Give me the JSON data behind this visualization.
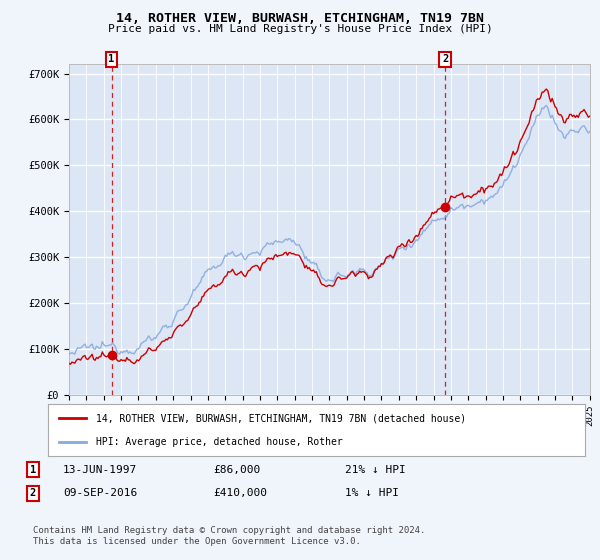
{
  "title_line1": "14, ROTHER VIEW, BURWASH, ETCHINGHAM, TN19 7BN",
  "title_line2": "Price paid vs. HM Land Registry's House Price Index (HPI)",
  "ylim": [
    0,
    720000
  ],
  "yticks": [
    0,
    100000,
    200000,
    300000,
    400000,
    500000,
    600000,
    700000
  ],
  "ytick_labels": [
    "£0",
    "£100K",
    "£200K",
    "£300K",
    "£400K",
    "£500K",
    "£600K",
    "£700K"
  ],
  "xlim": [
    1995,
    2025
  ],
  "background_color": "#f0f4fb",
  "plot_bg_color": "#dce6f5",
  "grid_color": "#ffffff",
  "hpi_color": "#88aadd",
  "price_color": "#cc0000",
  "sale1_t": 1997.45,
  "sale1_price": 86000,
  "sale1_date": "13-JUN-1997",
  "sale1_label": "21% ↓ HPI",
  "sale2_t": 2016.67,
  "sale2_price": 410000,
  "sale2_date": "09-SEP-2016",
  "sale2_label": "1% ↓ HPI",
  "legend_line1": "14, ROTHER VIEW, BURWASH, ETCHINGHAM, TN19 7BN (detached house)",
  "legend_line2": "HPI: Average price, detached house, Rother",
  "footnote": "Contains HM Land Registry data © Crown copyright and database right 2024.\nThis data is licensed under the Open Government Licence v3.0."
}
